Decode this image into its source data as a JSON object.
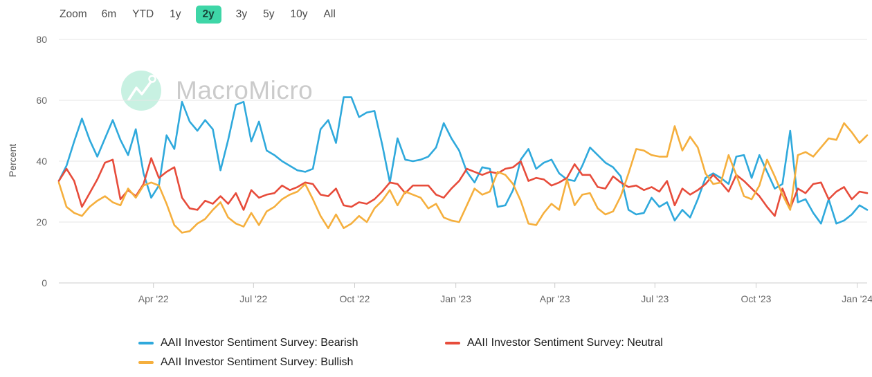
{
  "toolbar": {
    "zoom_label": "Zoom",
    "ranges": [
      "6m",
      "YTD",
      "1y",
      "2y",
      "3y",
      "5y",
      "10y",
      "All"
    ],
    "active_range": "2y"
  },
  "watermark": {
    "brand": "MacroMicro",
    "logo_icon": "line-chart-zigzag-icon"
  },
  "colors": {
    "bearish": "#2FA9DC",
    "neutral": "#E74C3B",
    "bullish": "#F5AF3D",
    "active_range_bg": "#3ED6A7",
    "active_range_text": "#17463A",
    "watermark_circle": "#C8F1E2",
    "watermark_text": "#CBCBCB",
    "grid": "#E6E6E6",
    "axis_line": "#CCCCCC",
    "axis_text": "#666666"
  },
  "chart_data": {
    "type": "line",
    "ylabel": "Percent",
    "ylim": [
      0,
      80
    ],
    "yticks": [
      0,
      20,
      40,
      60,
      80
    ],
    "grid": true,
    "legend_position": "bottom",
    "xticks": [
      {
        "label": "Apr '22",
        "week_index": 12.29
      },
      {
        "label": "Jul '22",
        "week_index": 25.29
      },
      {
        "label": "Oct '22",
        "week_index": 38.43
      },
      {
        "label": "Jan '23",
        "week_index": 51.57
      },
      {
        "label": "Apr '23",
        "week_index": 64.43
      },
      {
        "label": "Jul '23",
        "week_index": 77.43
      },
      {
        "label": "Oct '23",
        "week_index": 90.57
      },
      {
        "label": "Jan '24",
        "week_index": 103.71
      }
    ],
    "dates": [
      "2022-01-05",
      "2022-01-12",
      "2022-01-19",
      "2022-01-26",
      "2022-02-02",
      "2022-02-09",
      "2022-02-16",
      "2022-02-23",
      "2022-03-02",
      "2022-03-09",
      "2022-03-16",
      "2022-03-23",
      "2022-03-30",
      "2022-04-06",
      "2022-04-13",
      "2022-04-20",
      "2022-04-27",
      "2022-05-04",
      "2022-05-11",
      "2022-05-18",
      "2022-05-25",
      "2022-06-01",
      "2022-06-08",
      "2022-06-15",
      "2022-06-22",
      "2022-06-29",
      "2022-07-06",
      "2022-07-13",
      "2022-07-20",
      "2022-07-27",
      "2022-08-03",
      "2022-08-10",
      "2022-08-17",
      "2022-08-24",
      "2022-08-31",
      "2022-09-07",
      "2022-09-14",
      "2022-09-21",
      "2022-09-28",
      "2022-10-05",
      "2022-10-12",
      "2022-10-19",
      "2022-10-26",
      "2022-11-02",
      "2022-11-09",
      "2022-11-16",
      "2022-11-23",
      "2022-11-30",
      "2022-12-07",
      "2022-12-14",
      "2022-12-21",
      "2022-12-28",
      "2023-01-04",
      "2023-01-11",
      "2023-01-18",
      "2023-01-25",
      "2023-02-01",
      "2023-02-08",
      "2023-02-15",
      "2023-02-22",
      "2023-03-01",
      "2023-03-08",
      "2023-03-15",
      "2023-03-22",
      "2023-03-29",
      "2023-04-05",
      "2023-04-12",
      "2023-04-19",
      "2023-04-26",
      "2023-05-03",
      "2023-05-10",
      "2023-05-17",
      "2023-05-24",
      "2023-05-31",
      "2023-06-07",
      "2023-06-14",
      "2023-06-21",
      "2023-06-28",
      "2023-07-05",
      "2023-07-12",
      "2023-07-19",
      "2023-07-26",
      "2023-08-02",
      "2023-08-09",
      "2023-08-16",
      "2023-08-23",
      "2023-08-30",
      "2023-09-06",
      "2023-09-13",
      "2023-09-20",
      "2023-09-27",
      "2023-10-04",
      "2023-10-11",
      "2023-10-18",
      "2023-10-25",
      "2023-11-01",
      "2023-11-08",
      "2023-11-15",
      "2023-11-22",
      "2023-11-29",
      "2023-12-06",
      "2023-12-13",
      "2023-12-20",
      "2023-12-27",
      "2024-01-03",
      "2024-01-10"
    ],
    "series": [
      {
        "key": "bearish",
        "name": "AAII Investor Sentiment Survey: Bearish",
        "color": "#2FA9DC",
        "values": [
          33.5,
          38.5,
          46.5,
          54,
          47,
          41.5,
          47.5,
          53.5,
          47,
          42,
          50.5,
          36,
          28,
          32,
          48.5,
          44,
          59.5,
          53,
          50,
          53.5,
          50.5,
          37,
          47,
          58.5,
          59.5,
          46.5,
          53,
          43.5,
          42,
          40,
          38.5,
          37,
          36.5,
          37.5,
          50.5,
          53.5,
          46,
          61,
          61,
          54.5,
          56,
          56.5,
          45.5,
          33,
          47.5,
          40.5,
          40,
          40.5,
          41.5,
          44.5,
          52.5,
          47.5,
          43.5,
          36.5,
          33,
          38,
          37.5,
          25,
          25.5,
          30.5,
          40.5,
          44,
          37.5,
          39.5,
          40.5,
          36,
          34,
          33.5,
          38.5,
          44.5,
          42,
          39.5,
          38,
          35,
          24,
          22.5,
          23,
          28,
          25,
          26.5,
          20.5,
          24,
          21.5,
          27.5,
          34.5,
          36,
          34.5,
          32.5,
          41.5,
          42,
          34.5,
          42,
          36.5,
          31,
          32.5,
          50,
          26.5,
          27.5,
          23,
          19.5,
          27.5,
          19.5,
          20.5,
          22.5,
          25.5,
          24
        ]
      },
      {
        "key": "neutral",
        "name": "AAII Investor Sentiment Survey: Neutral",
        "color": "#E74C3B",
        "values": [
          33.5,
          37.5,
          33.5,
          25,
          29.5,
          34,
          39.5,
          40.5,
          27.5,
          30.5,
          28.5,
          32.5,
          41,
          34.5,
          36.5,
          38,
          28,
          24.5,
          24,
          27,
          26,
          28.5,
          26,
          29.5,
          24,
          30.5,
          28,
          29,
          29.5,
          32,
          30.5,
          31.5,
          33,
          32.5,
          29,
          28.5,
          31,
          25.5,
          25,
          26.5,
          26,
          27.5,
          30,
          33,
          32.5,
          29.5,
          32,
          32,
          32,
          29,
          28,
          31,
          33.5,
          37.5,
          36.5,
          35.5,
          36.5,
          36,
          37.5,
          38,
          40,
          33.5,
          34.5,
          34,
          32,
          33,
          34.5,
          39,
          35.5,
          35.5,
          31.5,
          31,
          35,
          33,
          31.5,
          32,
          30.5,
          31.5,
          30,
          33.5,
          25.5,
          31,
          29,
          30.5,
          32.5,
          35.5,
          33,
          30,
          35.5,
          33.5,
          31,
          28.5,
          25,
          22,
          31,
          24.5,
          31,
          29.5,
          32.5,
          33,
          27.5,
          30,
          31.5,
          27.5,
          30,
          29.5
        ]
      },
      {
        "key": "bullish",
        "name": "AAII Investor Sentiment Survey: Bullish",
        "color": "#F5AF3D",
        "values": [
          33,
          25,
          23,
          22,
          25,
          27,
          28.5,
          26.5,
          25.5,
          31,
          28,
          32,
          33,
          32,
          26,
          19,
          16.5,
          17,
          19.5,
          21,
          24,
          26.5,
          21.5,
          19.5,
          18.5,
          23,
          19,
          23.5,
          25,
          27.5,
          29,
          30,
          32.5,
          27.5,
          22,
          18,
          22.5,
          18,
          19.5,
          22,
          20,
          24.5,
          27,
          30.5,
          25.5,
          30,
          29,
          28,
          24.5,
          26,
          21.5,
          20.5,
          20,
          25.5,
          31,
          29,
          30,
          36.5,
          35.5,
          32.5,
          27,
          19.5,
          19,
          23,
          26,
          24,
          34,
          25.5,
          29,
          29.5,
          24.5,
          22.5,
          23.5,
          28.5,
          36,
          44,
          43.5,
          42,
          41.5,
          41.5,
          51.5,
          43.5,
          48,
          44.5,
          36,
          32.5,
          33,
          42,
          35.5,
          28.5,
          27.5,
          32,
          40.5,
          35,
          29,
          24,
          42,
          43,
          41.5,
          44.5,
          47.5,
          47,
          52.5,
          49.5,
          46,
          48.5
        ]
      }
    ]
  }
}
